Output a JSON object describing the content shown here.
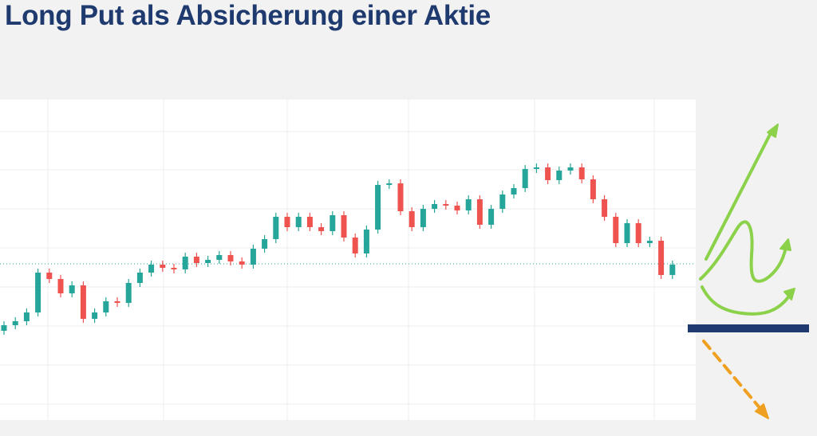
{
  "chart_data": {
    "type": "candlestick",
    "title": "Long Put als Absicherung einer Aktie",
    "ylim": [
      0,
      402
    ],
    "up_color": "#26a69a",
    "down_color": "#ef5350",
    "grid": true,
    "reference_line": {
      "value": 196,
      "color": "#26a69a"
    },
    "open": [
      112,
      119,
      124,
      135,
      185,
      177,
      159,
      169,
      127,
      135,
      149,
      147,
      172,
      185,
      195,
      191,
      189,
      205,
      197,
      201,
      207,
      199,
      195,
      215,
      227,
      255,
      242,
      255,
      242,
      237,
      257,
      229,
      209,
      239,
      295,
      297,
      262,
      242,
      265,
      271,
      269,
      263,
      277,
      245,
      265,
      283,
      291,
      315,
      317,
      301,
      313,
      317,
      302,
      277,
      255,
      222,
      247,
      222,
      225,
      182
    ],
    "high": [
      124,
      129,
      140,
      190,
      190,
      182,
      174,
      174,
      140,
      154,
      154,
      177,
      190,
      200,
      200,
      196,
      210,
      210,
      206,
      212,
      212,
      204,
      220,
      232,
      260,
      260,
      260,
      260,
      247,
      262,
      262,
      234,
      244,
      300,
      302,
      302,
      267,
      270,
      276,
      276,
      274,
      282,
      282,
      270,
      288,
      296,
      320,
      322,
      322,
      318,
      322,
      322,
      307,
      282,
      260,
      252,
      252,
      230,
      230,
      200
    ],
    "low": [
      107,
      114,
      119,
      130,
      172,
      154,
      154,
      122,
      122,
      130,
      142,
      142,
      167,
      180,
      186,
      184,
      184,
      192,
      192,
      196,
      194,
      190,
      190,
      210,
      222,
      237,
      237,
      237,
      232,
      232,
      224,
      204,
      204,
      234,
      290,
      257,
      237,
      237,
      260,
      264,
      258,
      258,
      240,
      240,
      260,
      278,
      286,
      310,
      296,
      296,
      308,
      297,
      272,
      250,
      217,
      217,
      217,
      217,
      177,
      177
    ],
    "close": [
      119,
      124,
      135,
      185,
      177,
      159,
      169,
      127,
      135,
      149,
      147,
      172,
      185,
      195,
      191,
      189,
      205,
      197,
      201,
      207,
      199,
      195,
      215,
      227,
      255,
      242,
      255,
      242,
      237,
      257,
      229,
      209,
      239,
      295,
      297,
      262,
      242,
      265,
      271,
      269,
      263,
      277,
      245,
      265,
      283,
      291,
      315,
      317,
      301,
      313,
      317,
      302,
      277,
      255,
      222,
      247,
      222,
      225,
      182,
      195
    ]
  }
}
